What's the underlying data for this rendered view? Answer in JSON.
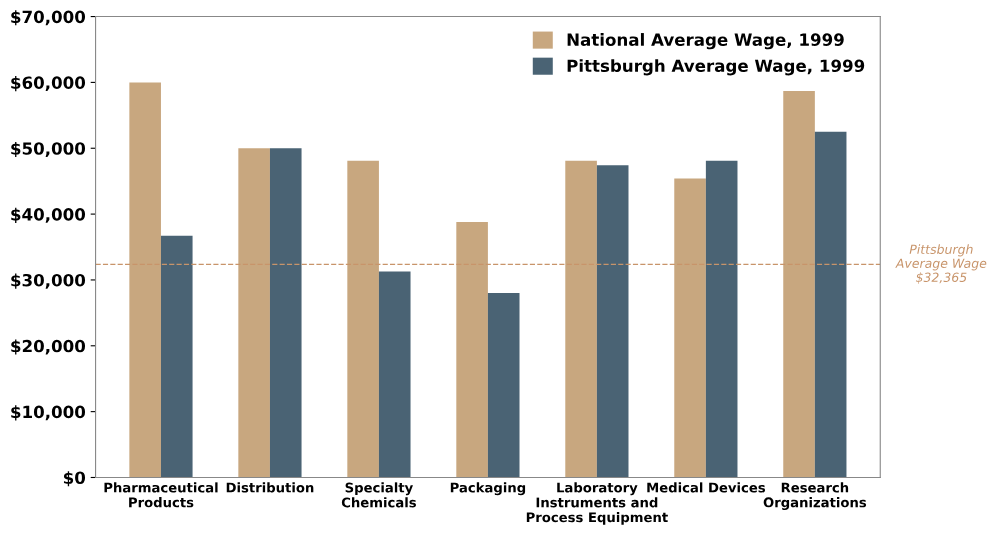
{
  "chart_data": {
    "type": "bar",
    "categories": [
      "Pharmaceutical\nProducts",
      "Distribution",
      "Specialty\nChemicals",
      "Packaging",
      "Laboratory\nInstruments and\nProcess Equipment",
      "Medical Devices",
      "Research\nOrganizations"
    ],
    "series": [
      {
        "name": "National Average Wage, 1999",
        "color": "#c8a77f",
        "values": [
          60000,
          50000,
          48100,
          38800,
          48100,
          45400,
          58700
        ]
      },
      {
        "name": "Pittsburgh Average Wage, 1999",
        "color": "#4a6374",
        "values": [
          36700,
          50000,
          31300,
          28000,
          47400,
          48100,
          52500
        ]
      }
    ],
    "ylim": [
      0,
      70000
    ],
    "yticks": [
      {
        "value": 0,
        "label": "$0"
      },
      {
        "value": 10000,
        "label": "$10,000"
      },
      {
        "value": 20000,
        "label": "$20,000"
      },
      {
        "value": 30000,
        "label": "$30,000"
      },
      {
        "value": 40000,
        "label": "$40,000"
      },
      {
        "value": 50000,
        "label": "$50,000"
      },
      {
        "value": 60000,
        "label": "$60,000"
      },
      {
        "value": 70000,
        "label": "$70,000"
      }
    ],
    "ref_lines": [
      {
        "axis": "y",
        "value": 32365,
        "label": "Pittsburgh\nAverage Wage\n$32,365",
        "color": "#c8946a",
        "line_style": "dashed"
      }
    ],
    "grid": false,
    "legend": "top right"
  }
}
